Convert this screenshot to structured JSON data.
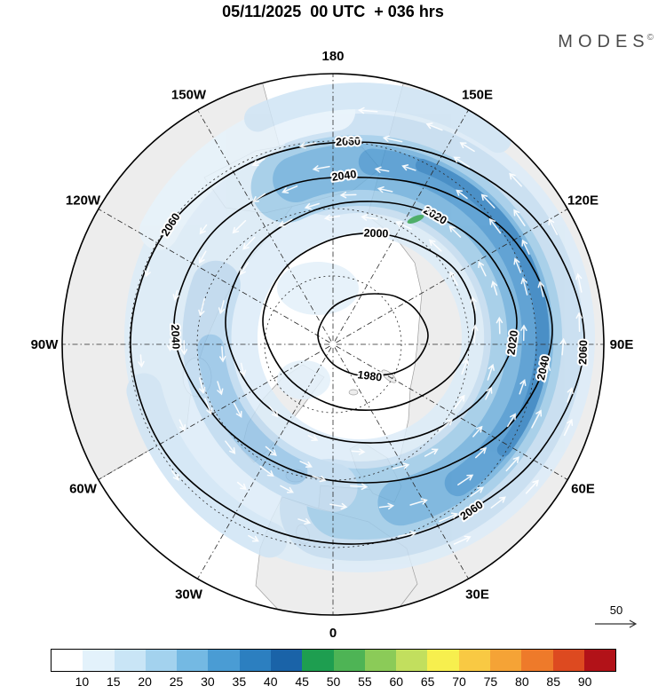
{
  "title": "05/11/2025  00 UTC  + 036 hrs",
  "logo": {
    "text": "MODES",
    "mark": "©"
  },
  "map": {
    "longitude_labels": [
      {
        "text": "180",
        "lon": 180
      },
      {
        "text": "150W",
        "lon": -150
      },
      {
        "text": "150E",
        "lon": 150
      },
      {
        "text": "120W",
        "lon": -120
      },
      {
        "text": "120E",
        "lon": 120
      },
      {
        "text": "90W",
        "lon": -90
      },
      {
        "text": "90E",
        "lon": 90
      },
      {
        "text": "60W",
        "lon": -60
      },
      {
        "text": "60E",
        "lon": 60
      },
      {
        "text": "30W",
        "lon": -30
      },
      {
        "text": "30E",
        "lon": 30
      },
      {
        "text": "0",
        "lon": 0
      }
    ]
  },
  "chart_data": {
    "type": "contour-map",
    "projection": "north-polar-stereographic",
    "title": "05/11/2025 00 UTC + 036 hrs",
    "contour_levels": [
      1980,
      2000,
      2020,
      2040,
      2060
    ],
    "shading": "wind speed (shaded band strongest over East Asia / western Pacific sector)",
    "reference_arrow_label": "50",
    "colorbar": {
      "tick_labels": [
        "10",
        "15",
        "20",
        "25",
        "30",
        "35",
        "40",
        "45",
        "50",
        "55",
        "60",
        "65",
        "70",
        "75",
        "80",
        "85",
        "90"
      ],
      "colors": [
        "#ffffff",
        "#e3f2fb",
        "#c9e5f6",
        "#a3d2ee",
        "#74b9e3",
        "#4a9cd4",
        "#2c7fc0",
        "#1a63a8",
        "#1e9e50",
        "#4eb455",
        "#8bcb58",
        "#c2df5e",
        "#f7ef4e",
        "#f9c943",
        "#f5a336",
        "#ee7a2a",
        "#dd4a20",
        "#b21218"
      ]
    }
  }
}
